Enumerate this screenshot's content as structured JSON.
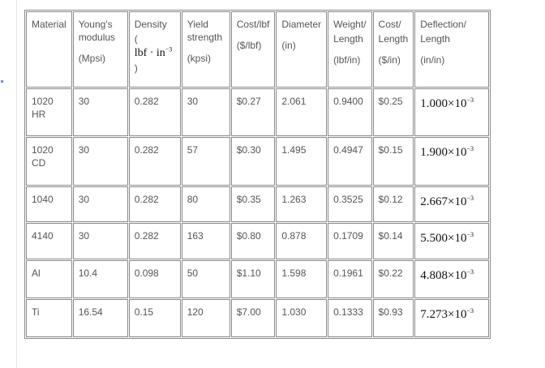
{
  "table": {
    "headers": [
      {
        "title": "Material"
      },
      {
        "title": "Young's modulus",
        "unit": "(Mpsi)"
      },
      {
        "title": "Density",
        "unit_open": "(",
        "unit": "lbf · in",
        "unit_exp": "−3",
        "unit_close": ")"
      },
      {
        "title": "Yield strength",
        "unit": "(kpsi)"
      },
      {
        "title": "Cost/lbf",
        "unit": "($/lbf)"
      },
      {
        "title": "Diameter",
        "unit": "(in)"
      },
      {
        "title": "Weight/",
        "title2": "Length",
        "unit": "(lbf/in)"
      },
      {
        "title": "Cost/",
        "title2": "Length",
        "unit": "($/in)"
      },
      {
        "title": "Deflection/",
        "title2": "Length",
        "unit": "(in/in)"
      }
    ],
    "rows": [
      [
        "1020 HR",
        "30",
        "0.282",
        "30",
        "$0.27",
        "2.061",
        "0.9400",
        "$0.25",
        {
          "base": "1.000×10",
          "exp": "−3"
        }
      ],
      [
        "1020 CD",
        "30",
        "0.282",
        "57",
        "$0.30",
        "1.495",
        "0.4947",
        "$0.15",
        {
          "base": "1.900×10",
          "exp": "−3"
        }
      ],
      [
        "1040",
        "30",
        "0.282",
        "80",
        "$0.35",
        "1.263",
        "0.3525",
        "$0.12",
        {
          "base": "2.667×10",
          "exp": "−3"
        }
      ],
      [
        "4140",
        "30",
        "0.282",
        "163",
        "$0.80",
        "0.878",
        "0.1709",
        "$0.14",
        {
          "base": "5.500×10",
          "exp": "−3"
        }
      ],
      [
        "Al",
        "10.4",
        "0.098",
        "50",
        "$1.10",
        "1.598",
        "0.1961",
        "$0.22",
        {
          "base": "4.808×10",
          "exp": "−3"
        }
      ],
      [
        "Ti",
        "16.54",
        "0.15",
        "120",
        "$7.00",
        "1.030",
        "0.1333",
        "$0.93",
        {
          "base": "7.273×10",
          "exp": "−3"
        }
      ]
    ]
  }
}
